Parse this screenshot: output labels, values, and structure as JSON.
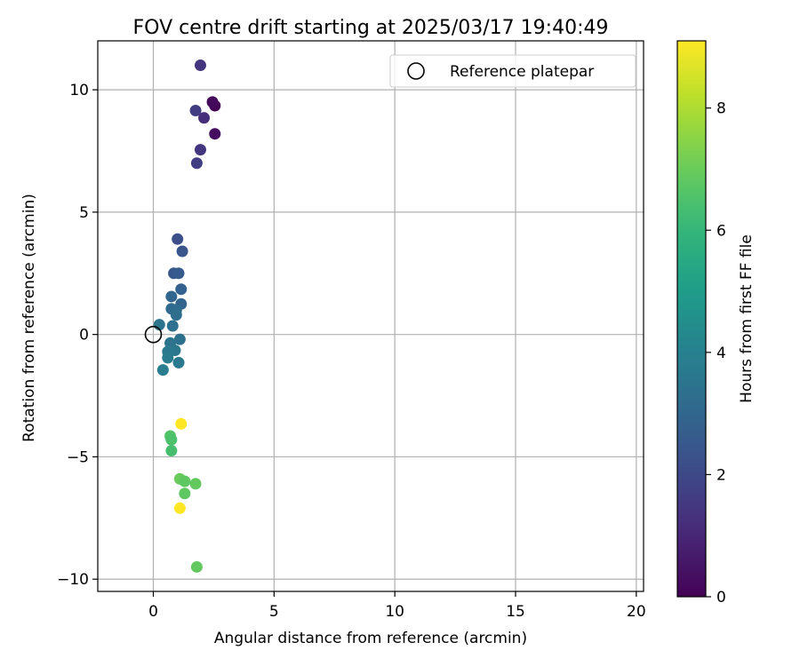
{
  "chart_data": {
    "type": "scatter",
    "title": "FOV centre drift starting at 2025/03/17 19:40:49",
    "xlabel": "Angular distance from reference (arcmin)",
    "ylabel": "Rotation from reference (arcmin)",
    "xlim": [
      -2.3,
      20.3
    ],
    "ylim": [
      -10.5,
      12.0
    ],
    "xticks": [
      0,
      5,
      10,
      15,
      20
    ],
    "yticks": [
      -10,
      -5,
      0,
      5,
      10
    ],
    "xtick_labels": [
      "0",
      "5",
      "10",
      "15",
      "20"
    ],
    "ytick_labels": [
      "−10",
      "−5",
      "0",
      "5",
      "10"
    ],
    "grid": true,
    "legend": {
      "placement": "top-right",
      "entries": [
        "Reference platepar"
      ]
    },
    "reference_point": {
      "x": 0,
      "y": 0,
      "marker": "hollow-circle"
    },
    "colorbar": {
      "label": "Hours from first FF file",
      "colormap": "viridis",
      "range": [
        0,
        9.1
      ],
      "ticks": [
        0,
        2,
        4,
        6,
        8
      ],
      "tick_labels": [
        "0",
        "2",
        "4",
        "6",
        "8"
      ]
    },
    "points": [
      {
        "x": 2.55,
        "y": 9.35,
        "hours": 0.0
      },
      {
        "x": 2.45,
        "y": 9.5,
        "hours": 0.2
      },
      {
        "x": 2.55,
        "y": 8.2,
        "hours": 0.3
      },
      {
        "x": 2.1,
        "y": 8.85,
        "hours": 1.2
      },
      {
        "x": 1.95,
        "y": 11.0,
        "hours": 1.4
      },
      {
        "x": 1.75,
        "y": 9.15,
        "hours": 1.6
      },
      {
        "x": 1.95,
        "y": 7.55,
        "hours": 1.4
      },
      {
        "x": 1.8,
        "y": 7.0,
        "hours": 1.6
      },
      {
        "x": 1.0,
        "y": 3.9,
        "hours": 2.2
      },
      {
        "x": 1.2,
        "y": 3.4,
        "hours": 2.4
      },
      {
        "x": 0.85,
        "y": 2.5,
        "hours": 2.5
      },
      {
        "x": 1.05,
        "y": 2.5,
        "hours": 2.6
      },
      {
        "x": 1.15,
        "y": 1.85,
        "hours": 2.8
      },
      {
        "x": 1.15,
        "y": 1.25,
        "hours": 2.9
      },
      {
        "x": 0.75,
        "y": 1.55,
        "hours": 3.0
      },
      {
        "x": 0.75,
        "y": 1.05,
        "hours": 3.1
      },
      {
        "x": 0.95,
        "y": 1.0,
        "hours": 3.2
      },
      {
        "x": 0.95,
        "y": 0.8,
        "hours": 3.3
      },
      {
        "x": 0.8,
        "y": 0.35,
        "hours": 3.4
      },
      {
        "x": 0.25,
        "y": 0.4,
        "hours": 3.5
      },
      {
        "x": 1.1,
        "y": -0.2,
        "hours": 3.4
      },
      {
        "x": 0.7,
        "y": -0.35,
        "hours": 3.5
      },
      {
        "x": 0.9,
        "y": -0.65,
        "hours": 3.6
      },
      {
        "x": 0.6,
        "y": -0.7,
        "hours": 3.7
      },
      {
        "x": 0.6,
        "y": -0.95,
        "hours": 3.8
      },
      {
        "x": 1.05,
        "y": -1.15,
        "hours": 3.7
      },
      {
        "x": 0.4,
        "y": -1.45,
        "hours": 3.9
      },
      {
        "x": 1.15,
        "y": -3.65,
        "hours": 9.1
      },
      {
        "x": 0.7,
        "y": -4.15,
        "hours": 6.6
      },
      {
        "x": 0.75,
        "y": -4.3,
        "hours": 6.5
      },
      {
        "x": 0.75,
        "y": -4.75,
        "hours": 6.4
      },
      {
        "x": 1.1,
        "y": -5.9,
        "hours": 7.0
      },
      {
        "x": 1.3,
        "y": -6.0,
        "hours": 6.8
      },
      {
        "x": 1.75,
        "y": -6.1,
        "hours": 6.9
      },
      {
        "x": 1.3,
        "y": -6.5,
        "hours": 6.8
      },
      {
        "x": 1.1,
        "y": -7.1,
        "hours": 9.1
      },
      {
        "x": 1.8,
        "y": -9.5,
        "hours": 6.9
      }
    ]
  }
}
